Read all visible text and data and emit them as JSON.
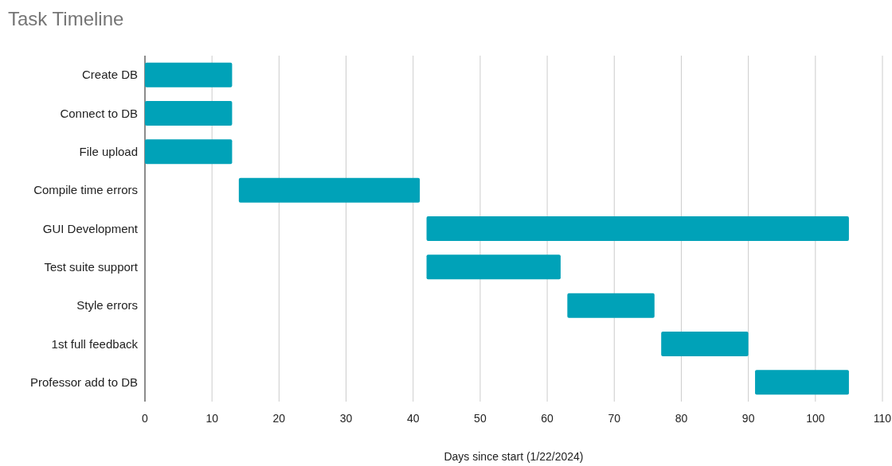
{
  "chart_data": {
    "type": "bar",
    "title": "Task Timeline",
    "xlabel": "Days since start (1/22/2024)",
    "orientation": "horizontal",
    "categories": [
      "Create DB",
      "Connect to DB",
      "File upload",
      "Compile time errors",
      "GUI Development",
      "Test suite support",
      "Style errors",
      "1st full feedback",
      "Professor add to DB"
    ],
    "base": [
      0,
      0,
      0,
      14,
      42,
      42,
      63,
      77,
      91
    ],
    "values": [
      13,
      13,
      13,
      27,
      63,
      20,
      13,
      13,
      14
    ],
    "color": "#00a2b8",
    "xlim": [
      0,
      110
    ],
    "xticks": [
      0,
      10,
      20,
      30,
      40,
      50,
      60,
      70,
      80,
      90,
      100,
      110
    ],
    "grid": "x"
  }
}
